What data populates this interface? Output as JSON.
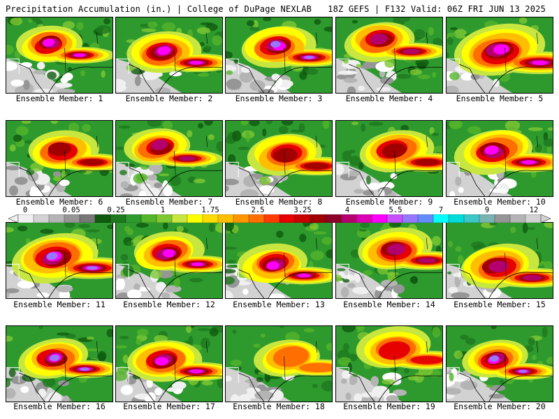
{
  "header": {
    "left": "Precipitation Accumulation (in.) | College of DuPage NEXLAB",
    "right": "18Z GEFS | F132 Valid: 06Z FRI JUN 13 2025"
  },
  "legend": {
    "ticks": [
      "0",
      "0.05",
      "0.25",
      "1",
      "1.75",
      "2.5",
      "3.25",
      "4",
      "5.5",
      "7",
      "9",
      "12"
    ],
    "colors": [
      "#f0f0f0",
      "#d2d2d2",
      "#b4b4b4",
      "#969696",
      "#787878",
      "#0f5a0f",
      "#1e781e",
      "#2e9a2e",
      "#54b42a",
      "#7ec832",
      "#c8e640",
      "#ffff00",
      "#ffdc00",
      "#ffbe00",
      "#ff9600",
      "#ff6e00",
      "#ff3c00",
      "#e60000",
      "#c80000",
      "#a00000",
      "#8c0028",
      "#b4006e",
      "#dc00b4",
      "#ff00ff",
      "#c850ff",
      "#9678ff",
      "#648cff",
      "#00ffff",
      "#00dcdc",
      "#3cc8c8",
      "#78b4b4",
      "#969696",
      "#b4b4b4",
      "#d2d2d2"
    ]
  },
  "panels": [
    {
      "label": "Ensemble Member: 1",
      "intensity": 0.75,
      "center": [
        0.42,
        0.35
      ],
      "spread": 0.3
    },
    {
      "label": "Ensemble Member: 2",
      "intensity": 0.8,
      "center": [
        0.45,
        0.45
      ],
      "spread": 0.34
    },
    {
      "label": "Ensemble Member: 3",
      "intensity": 0.85,
      "center": [
        0.48,
        0.38
      ],
      "spread": 0.34
    },
    {
      "label": "Ensemble Member: 4",
      "intensity": 0.7,
      "center": [
        0.42,
        0.3
      ],
      "spread": 0.32
    },
    {
      "label": "Ensemble Member: 5",
      "intensity": 0.8,
      "center": [
        0.5,
        0.45
      ],
      "spread": 0.42
    },
    {
      "label": "Ensemble Member: 6",
      "intensity": 0.6,
      "center": [
        0.52,
        0.4
      ],
      "spread": 0.32
    },
    {
      "label": "Ensemble Member: 7",
      "intensity": 0.72,
      "center": [
        0.4,
        0.35
      ],
      "spread": 0.3
    },
    {
      "label": "Ensemble Member: 8",
      "intensity": 0.6,
      "center": [
        0.55,
        0.45
      ],
      "spread": 0.34
    },
    {
      "label": "Ensemble Member: 9",
      "intensity": 0.62,
      "center": [
        0.55,
        0.4
      ],
      "spread": 0.34
    },
    {
      "label": "Ensemble Member: 10",
      "intensity": 0.82,
      "center": [
        0.45,
        0.4
      ],
      "spread": 0.36
    },
    {
      "label": "Ensemble Member: 11",
      "intensity": 0.92,
      "center": [
        0.45,
        0.45
      ],
      "spread": 0.4
    },
    {
      "label": "Ensemble Member: 12",
      "intensity": 0.78,
      "center": [
        0.48,
        0.4
      ],
      "spread": 0.32
    },
    {
      "label": "Ensemble Member: 13",
      "intensity": 0.82,
      "center": [
        0.45,
        0.55
      ],
      "spread": 0.32
    },
    {
      "label": "Ensemble Member: 14",
      "intensity": 0.72,
      "center": [
        0.55,
        0.35
      ],
      "spread": 0.34
    },
    {
      "label": "Ensemble Member: 15",
      "intensity": 0.68,
      "center": [
        0.48,
        0.58
      ],
      "spread": 0.36
    },
    {
      "label": "Ensemble Member: 16",
      "intensity": 0.88,
      "center": [
        0.45,
        0.42
      ],
      "spread": 0.32
    },
    {
      "label": "Ensemble Member: 17",
      "intensity": 0.78,
      "center": [
        0.45,
        0.45
      ],
      "spread": 0.34
    },
    {
      "label": "Ensemble Member: 18",
      "intensity": 0.38,
      "center": [
        0.6,
        0.4
      ],
      "spread": 0.3
    },
    {
      "label": "Ensemble Member: 19",
      "intensity": 0.48,
      "center": [
        0.55,
        0.3
      ],
      "spread": 0.34
    },
    {
      "label": "Ensemble Member: 20",
      "intensity": 0.88,
      "center": [
        0.45,
        0.45
      ],
      "spread": 0.3
    }
  ]
}
